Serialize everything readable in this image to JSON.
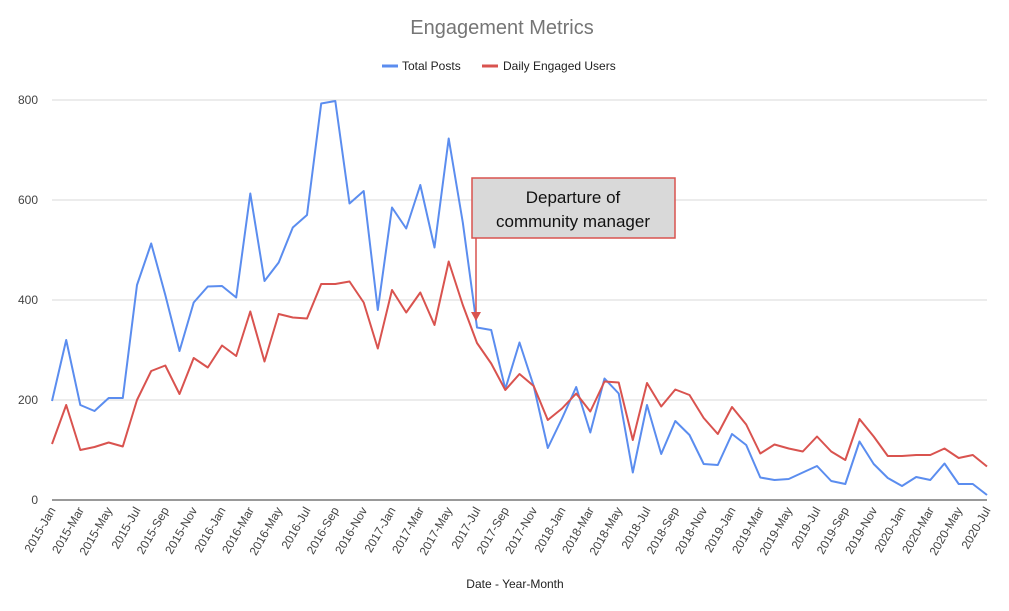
{
  "chart_data": {
    "type": "line",
    "title": "Engagement Metrics",
    "xlabel": "Date - Year-Month",
    "ylabel": "",
    "ylim": [
      0,
      800
    ],
    "yticks": [
      "0",
      "200",
      "400",
      "600",
      "800"
    ],
    "grid": true,
    "legend_position": "top",
    "x": [
      "2015-Jan",
      "2015-Feb",
      "2015-Mar",
      "2015-Apr",
      "2015-May",
      "2015-Jun",
      "2015-Jul",
      "2015-Aug",
      "2015-Sep",
      "2015-Oct",
      "2015-Nov",
      "2015-Dec",
      "2016-Jan",
      "2016-Feb",
      "2016-Mar",
      "2016-Apr",
      "2016-May",
      "2016-Jun",
      "2016-Jul",
      "2016-Aug",
      "2016-Sep",
      "2016-Oct",
      "2016-Nov",
      "2016-Dec",
      "2017-Jan",
      "2017-Feb",
      "2017-Mar",
      "2017-Apr",
      "2017-May",
      "2017-Jun",
      "2017-Jul",
      "2017-Aug",
      "2017-Sep",
      "2017-Oct",
      "2017-Nov",
      "2017-Dec",
      "2018-Jan",
      "2018-Feb",
      "2018-Mar",
      "2018-Apr",
      "2018-May",
      "2018-Jun",
      "2018-Jul",
      "2018-Aug",
      "2018-Sep",
      "2018-Oct",
      "2018-Nov",
      "2018-Dec",
      "2019-Jan",
      "2019-Feb",
      "2019-Mar",
      "2019-Apr",
      "2019-May",
      "2019-Jun",
      "2019-Jul",
      "2019-Aug",
      "2019-Sep",
      "2019-Oct",
      "2019-Nov",
      "2019-Dec",
      "2020-Jan",
      "2020-Feb",
      "2020-Mar",
      "2020-Apr",
      "2020-May",
      "2020-Jun",
      "2020-Jul"
    ],
    "x_tick_labels": [
      "2015-Jan",
      "2015-Mar",
      "2015-May",
      "2015-Jul",
      "2015-Sep",
      "2015-Nov",
      "2016-Jan",
      "2016-Mar",
      "2016-May",
      "2016-Jul",
      "2016-Sep",
      "2016-Nov",
      "2017-Jan",
      "2017-Mar",
      "2017-May",
      "2017-Jul",
      "2017-Sep",
      "2017-Nov",
      "2018-Jan",
      "2018-Mar",
      "2018-May",
      "2018-Jul",
      "2018-Sep",
      "2018-Nov",
      "2019-Jan",
      "2019-Mar",
      "2019-May",
      "2019-Jul",
      "2019-Sep",
      "2019-Nov",
      "2020-Jan",
      "2020-Mar",
      "2020-May",
      "2020-Jul"
    ],
    "series": [
      {
        "name": "Total Posts",
        "color": "#5b8def",
        "values": [
          198,
          320,
          190,
          178,
          204,
          204,
          430,
          513,
          410,
          298,
          395,
          427,
          428,
          405,
          613,
          438,
          475,
          545,
          570,
          793,
          798,
          593,
          618,
          380,
          585,
          543,
          630,
          505,
          723,
          555,
          345,
          340,
          222,
          315,
          228,
          104,
          163,
          226,
          135,
          243,
          213,
          55,
          190,
          92,
          158,
          130,
          72,
          70,
          132,
          110,
          45,
          40,
          42,
          55,
          68,
          38,
          32,
          117,
          72,
          44,
          28,
          46,
          40,
          73,
          32,
          32,
          10
        ]
      },
      {
        "name": "Daily Engaged Users",
        "color": "#d9534f",
        "values": [
          112,
          190,
          100,
          106,
          115,
          107,
          200,
          258,
          269,
          212,
          284,
          265,
          309,
          288,
          377,
          277,
          372,
          365,
          363,
          432,
          432,
          437,
          395,
          303,
          420,
          375,
          415,
          350,
          477,
          390,
          314,
          273,
          220,
          252,
          228,
          160,
          183,
          213,
          177,
          237,
          235,
          120,
          234,
          187,
          221,
          210,
          164,
          132,
          186,
          151,
          93,
          111,
          103,
          97,
          127,
          97,
          80,
          162,
          127,
          88,
          88,
          90,
          90,
          103,
          84,
          90,
          67
        ]
      }
    ],
    "annotation": {
      "text_line1": "Departure of",
      "text_line2": "community manager",
      "points_to": "2017-Jul",
      "box_fill": "#d9d9d9",
      "border_color": "#d9534f"
    }
  }
}
